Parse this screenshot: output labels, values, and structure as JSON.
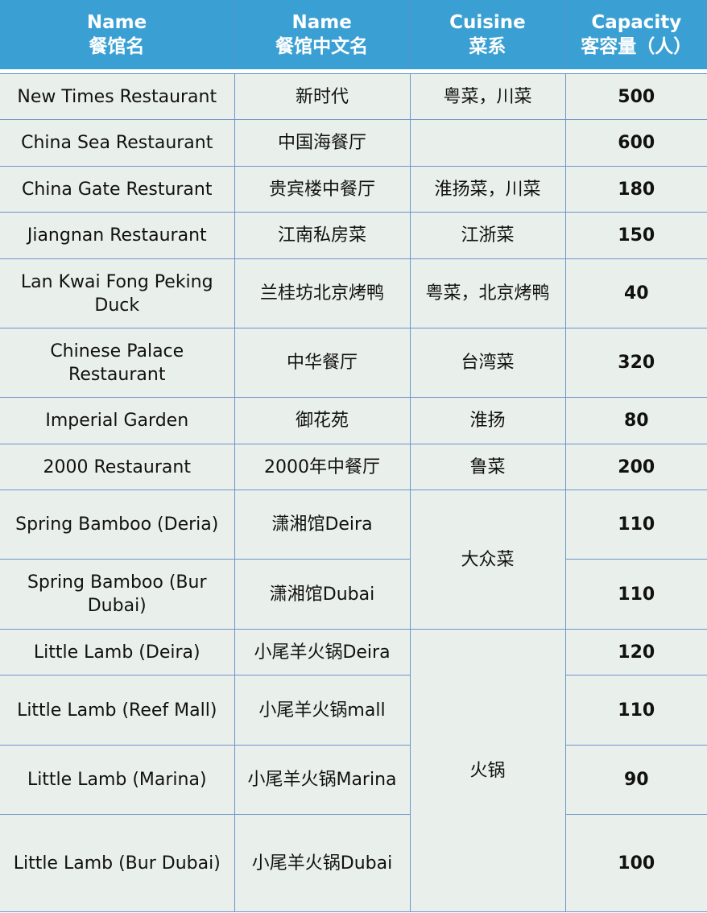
{
  "headers": [
    {
      "en": "Name",
      "zh": "餐馆名"
    },
    {
      "en": "Name",
      "zh": "餐馆中文名"
    },
    {
      "en": "Cuisine",
      "zh": "菜系"
    },
    {
      "en": "Capacity",
      "zh": "客容量（人）"
    }
  ],
  "rows": [
    {
      "name": "New Times Restaurant",
      "zh": "新时代",
      "cuisine": "粤菜，川菜",
      "capacity": "500"
    },
    {
      "name": "China Sea Restaurant",
      "zh": "中国海餐厅",
      "cuisine": "",
      "capacity": "600"
    },
    {
      "name": "China Gate Resturant",
      "zh": "贵宾楼中餐厅",
      "cuisine": "淮扬菜，川菜",
      "capacity": "180"
    },
    {
      "name": "Jiangnan Restaurant",
      "zh": "江南私房菜",
      "cuisine": "江浙菜",
      "capacity": "150"
    },
    {
      "name": "Lan Kwai Fong Peking Duck",
      "zh": "兰桂坊北京烤鸭",
      "cuisine": "粤菜，北京烤鸭",
      "capacity": "40"
    },
    {
      "name": "Chinese Palace Restaurant",
      "zh": "中华餐厅",
      "cuisine": "台湾菜",
      "capacity": "320"
    },
    {
      "name": "Imperial Garden",
      "zh": "御花苑",
      "cuisine": "淮扬",
      "capacity": "80"
    },
    {
      "name": "2000 Restaurant",
      "zh": "2000年中餐厅",
      "cuisine": "鲁菜",
      "capacity": "200"
    },
    {
      "name": "Spring Bamboo (Deria)",
      "zh": "潇湘馆Deira",
      "cuisine": "大众菜",
      "capacity": "110"
    },
    {
      "name": "Spring Bamboo (Bur Dubai)",
      "zh": "潇湘馆Dubai",
      "capacity": "110"
    },
    {
      "name": "Little Lamb (Deira)",
      "zh": "小尾羊火锅Deira",
      "cuisine": "火锅",
      "capacity": "120"
    },
    {
      "name": "Little Lamb (Reef Mall)",
      "zh": "小尾羊火锅mall",
      "capacity": "110"
    },
    {
      "name": "Little Lamb (Marina)",
      "zh": "小尾羊火锅Marina",
      "capacity": "90"
    },
    {
      "name": "Little Lamb (Bur Dubai)",
      "zh": "小尾羊火锅Dubai",
      "capacity": "100"
    }
  ]
}
